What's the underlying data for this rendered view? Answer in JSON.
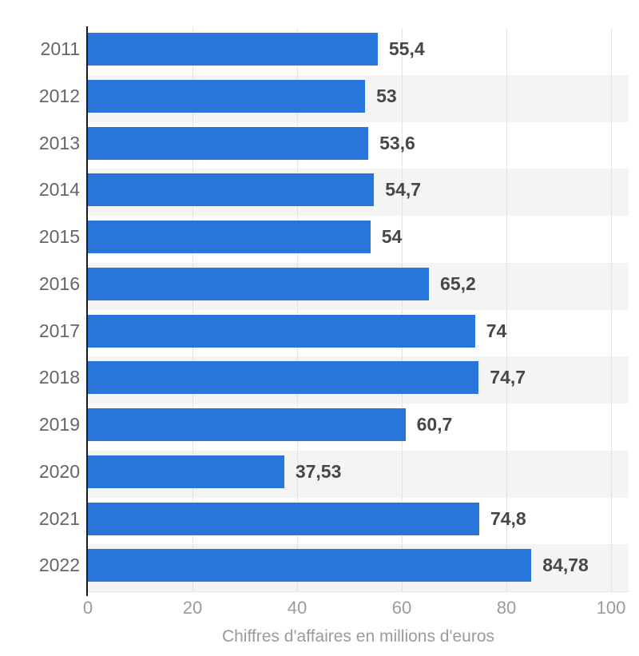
{
  "chart_data": {
    "type": "bar",
    "orientation": "horizontal",
    "title": "",
    "xlabel": "Chiffres d'affaires en millions d'euros",
    "ylabel": "",
    "categories": [
      "2011",
      "2012",
      "2013",
      "2014",
      "2015",
      "2016",
      "2017",
      "2018",
      "2019",
      "2020",
      "2021",
      "2022"
    ],
    "values": [
      55.4,
      53,
      53.6,
      54.7,
      54,
      65.2,
      74,
      74.7,
      60.7,
      37.53,
      74.8,
      84.78
    ],
    "value_labels": [
      "55,4",
      "53",
      "53,6",
      "54,7",
      "54",
      "65,2",
      "74",
      "74,7",
      "60,7",
      "37,53",
      "74,8",
      "84,78"
    ],
    "xlim": [
      0,
      100
    ],
    "x_ticks": [
      0,
      20,
      40,
      60,
      80,
      100
    ],
    "x_tick_labels": [
      "0",
      "20",
      "40",
      "60",
      "80",
      "100"
    ],
    "grid": "vertical-dotted",
    "legend": "none",
    "colors": {
      "bar": "#2976da",
      "row_stripe": "#f4f4f4",
      "category_label": "#666666",
      "value_label": "#474747",
      "tick_label": "#9b9b9b",
      "axis_title": "#9b9b9b",
      "gridline": "#cccccc",
      "axis_line": "#1a1a1a"
    },
    "striped_rows": "alternate starting at 2012"
  }
}
